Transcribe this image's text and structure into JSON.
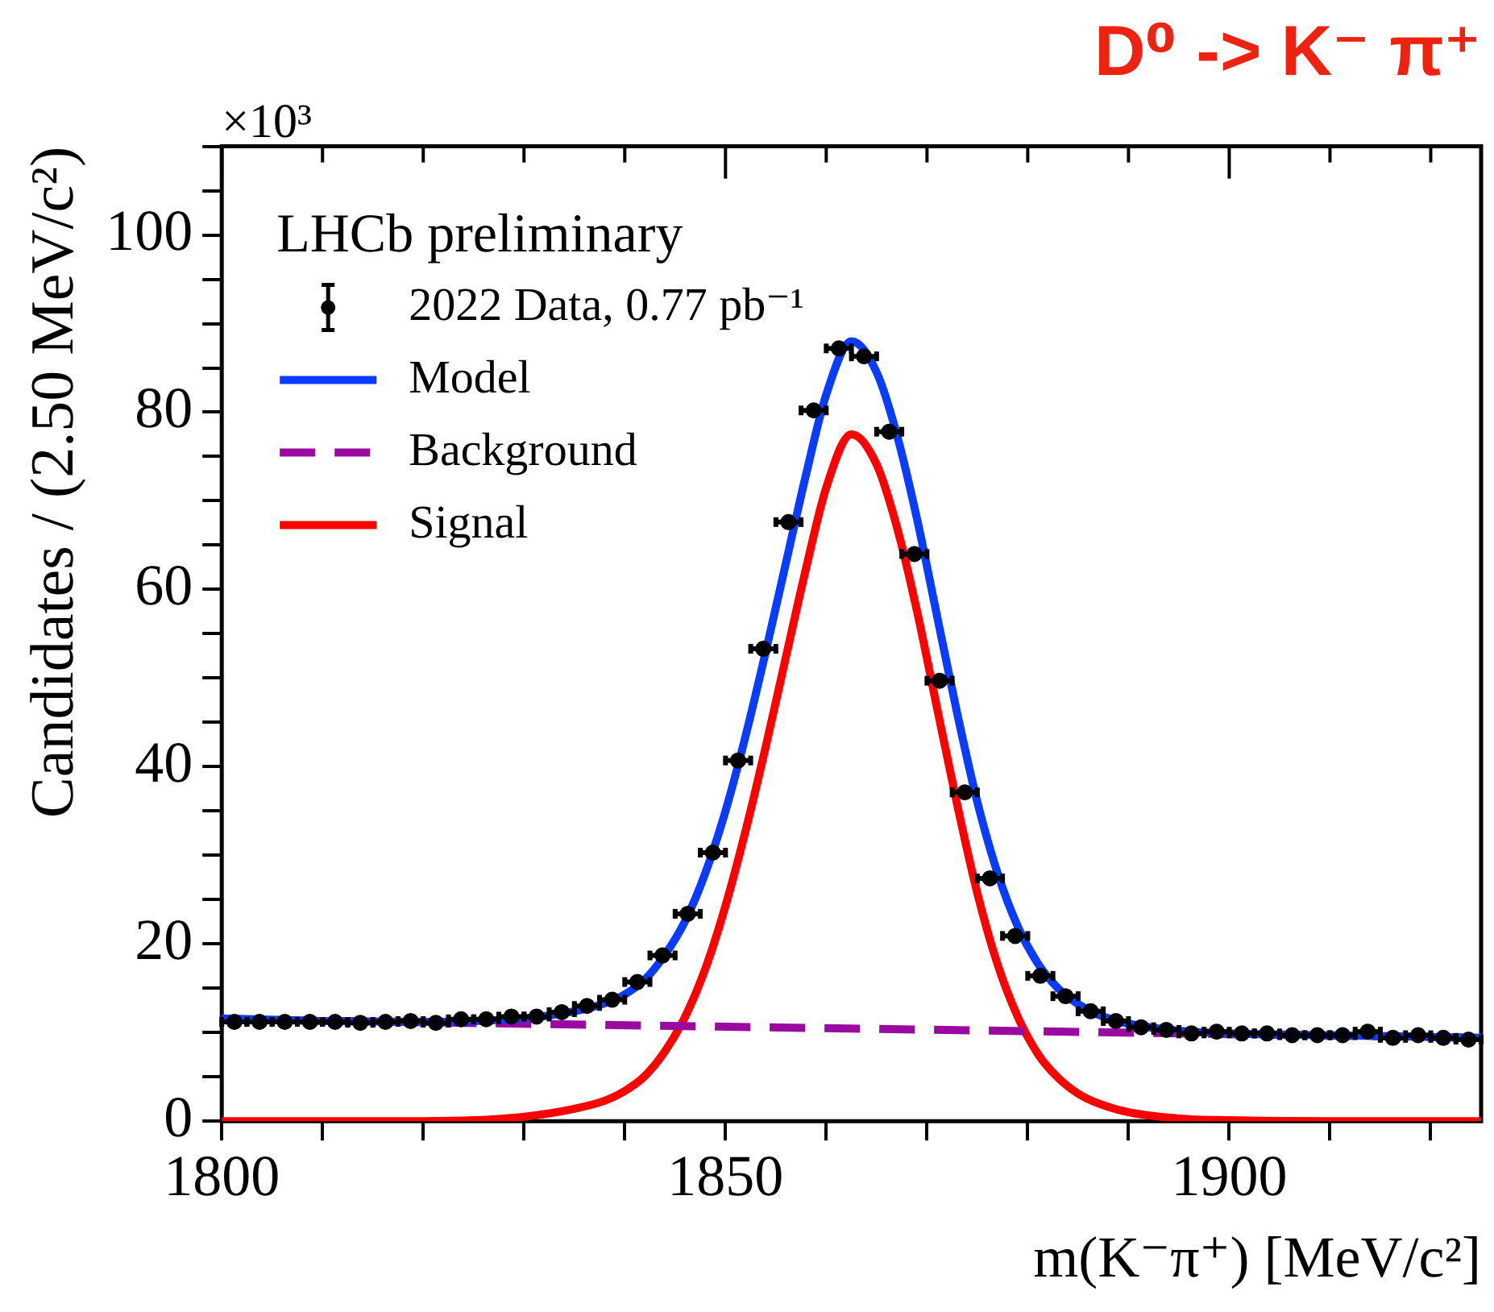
{
  "chart_data": {
    "type": "scatter",
    "title": "D⁰ -> K⁻ π⁺",
    "xlabel": "m(K⁻π⁺) [MeV/c²]",
    "ylabel": "Candidates / (2.50 MeV/c²)",
    "annotations": [
      "LHCb preliminary",
      "×10³"
    ],
    "xlim": [
      1800,
      1925
    ],
    "xticks": [
      1800,
      {
        "value": 1810,
        "label": null
      },
      {
        "value": 1820,
        "label": null
      },
      {
        "value": 1830,
        "label": null
      },
      {
        "value": 1840,
        "label": null
      },
      1850,
      {
        "value": 1860,
        "label": null
      },
      {
        "value": 1870,
        "label": null
      },
      {
        "value": 1880,
        "label": null
      },
      {
        "value": 1890,
        "label": null
      },
      1900,
      {
        "value": 1910,
        "label": null
      },
      {
        "value": 1920,
        "label": null
      }
    ],
    "ylim": [
      0,
      110
    ],
    "yticks": [
      0,
      {
        "value": 5,
        "label": null
      },
      {
        "value": 10,
        "label": null
      },
      {
        "value": 15,
        "label": null
      },
      20,
      {
        "value": 25,
        "label": null
      },
      {
        "value": 30,
        "label": null
      },
      {
        "value": 35,
        "label": null
      },
      40,
      {
        "value": 45,
        "label": null
      },
      {
        "value": 50,
        "label": null
      },
      {
        "value": 55,
        "label": null
      },
      60,
      {
        "value": 65,
        "label": null
      },
      {
        "value": 70,
        "label": null
      },
      {
        "value": 75,
        "label": null
      },
      80,
      {
        "value": 85,
        "label": null
      },
      {
        "value": 90,
        "label": null
      },
      {
        "value": 95,
        "label": null
      },
      100,
      {
        "value": 105,
        "label": null
      },
      {
        "value": 110,
        "label": null
      }
    ],
    "grid": false,
    "legend": "top left",
    "series": [
      {
        "name": "2022 Data, 0.77 pb⁻¹",
        "marker": "circle",
        "color": "#000000",
        "x": [
          1801.25,
          1803.75,
          1806.25,
          1808.75,
          1811.25,
          1813.75,
          1816.25,
          1818.75,
          1821.25,
          1823.75,
          1826.25,
          1828.75,
          1831.25,
          1833.75,
          1836.25,
          1838.75,
          1841.25,
          1843.75,
          1846.25,
          1848.75,
          1851.25,
          1853.75,
          1856.25,
          1858.75,
          1861.25,
          1863.75,
          1866.25,
          1868.75,
          1871.25,
          1873.75,
          1876.25,
          1878.75,
          1881.25,
          1883.75,
          1886.25,
          1888.75,
          1891.25,
          1893.75,
          1896.25,
          1898.75,
          1901.25,
          1903.75,
          1906.25,
          1908.75,
          1911.25,
          1913.75,
          1916.25,
          1918.75,
          1921.25,
          1923.75
        ],
        "values": [
          11.2,
          11.2,
          11.2,
          11.2,
          11.2,
          11.1,
          11.2,
          11.3,
          11.1,
          11.5,
          11.5,
          11.8,
          11.8,
          12.3,
          13.0,
          13.7,
          15.7,
          18.7,
          23.4,
          30.3,
          40.7,
          53.3,
          67.6,
          80.2,
          87.2,
          86.3,
          77.8,
          64.0,
          49.7,
          37.1,
          27.4,
          20.9,
          16.4,
          14.1,
          12.4,
          11.3,
          10.6,
          10.3,
          9.9,
          10.1,
          9.9,
          9.9,
          9.7,
          9.7,
          9.7,
          10.1,
          9.4,
          9.7,
          9.4,
          9.2
        ],
        "xerrors": [
          1.25,
          1.25,
          1.25,
          1.25,
          1.25,
          1.25,
          1.25,
          1.25,
          1.25,
          1.25,
          1.25,
          1.25,
          1.25,
          1.25,
          1.25,
          1.25,
          1.25,
          1.25,
          1.25,
          1.25,
          1.25,
          1.25,
          1.25,
          1.25,
          1.25,
          1.25,
          1.25,
          1.25,
          1.25,
          1.25,
          1.25,
          1.25,
          1.25,
          1.25,
          1.25,
          1.25,
          1.25,
          1.25,
          1.25,
          1.25,
          1.25,
          1.25,
          1.25,
          1.25,
          1.25,
          1.25,
          1.25,
          1.25,
          1.25,
          1.25
        ]
      },
      {
        "name": "Model",
        "type": "line",
        "line_style": "solid",
        "color": "#0a3cff",
        "x": [
          1800,
          1810,
          1820,
          1825,
          1830,
          1835,
          1838,
          1840,
          1842,
          1844,
          1846,
          1848,
          1850,
          1852,
          1854,
          1856,
          1858,
          1860,
          1862.5,
          1865,
          1867,
          1869,
          1871,
          1873,
          1875,
          1877,
          1879,
          1881,
          1883,
          1885,
          1887,
          1890,
          1895,
          1900,
          1910,
          1925
        ],
        "values": [
          11.6,
          11.3,
          11.2,
          11.3,
          11.6,
          12.4,
          13.3,
          14.3,
          16.0,
          18.8,
          22.6,
          28.0,
          35.0,
          43.5,
          53.0,
          63.0,
          73.0,
          82.0,
          88.0,
          84.5,
          77.5,
          68.0,
          57.0,
          46.0,
          36.0,
          28.0,
          22.0,
          17.8,
          15.0,
          13.2,
          12.0,
          11.0,
          10.2,
          9.9,
          9.7,
          9.4
        ]
      },
      {
        "name": "Background",
        "type": "line",
        "line_style": "dashed",
        "color": "#9a0aa0",
        "x": [
          1800,
          1925
        ],
        "values": [
          11.5,
          9.4
        ]
      },
      {
        "name": "Signal",
        "type": "line",
        "line_style": "solid",
        "color": "#ff0000",
        "x": [
          1800,
          1810,
          1820,
          1825,
          1830,
          1835,
          1838,
          1840,
          1842,
          1844,
          1846,
          1848,
          1850,
          1852,
          1854,
          1856,
          1858,
          1860,
          1862.5,
          1865,
          1867,
          1869,
          1871,
          1873,
          1875,
          1877,
          1879,
          1881,
          1883,
          1885,
          1887,
          1890,
          1895,
          1900,
          1910,
          1925
        ],
        "values": [
          0,
          0,
          0,
          0.1,
          0.5,
          1.4,
          2.3,
          3.4,
          5.1,
          7.9,
          11.8,
          17.2,
          24.3,
          32.8,
          42.3,
          52.4,
          62.4,
          71.5,
          77.5,
          74.1,
          67.1,
          57.6,
          46.6,
          35.7,
          25.7,
          17.7,
          11.8,
          7.6,
          4.9,
          3.1,
          2.0,
          1.0,
          0.3,
          0.1,
          0,
          0
        ]
      }
    ]
  }
}
